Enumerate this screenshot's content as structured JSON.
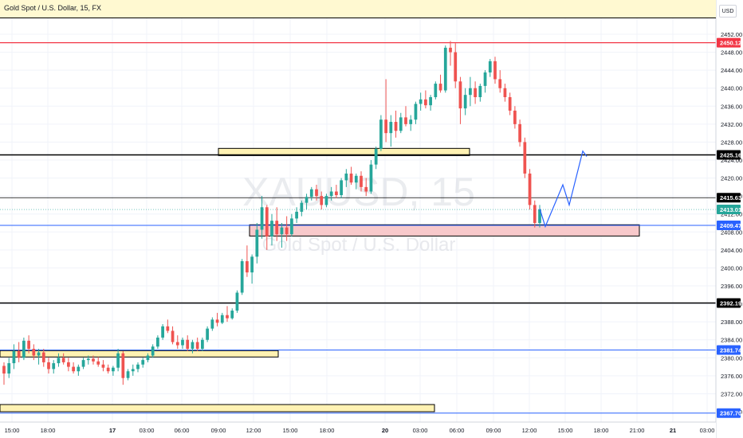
{
  "header": {
    "title": "Gold Spot / U.S. Dollar, 15, FX",
    "currency": "USD"
  },
  "watermark": {
    "symbol": "XAUUSD, 15",
    "name": "Gold Spot / U.S. Dollar"
  },
  "colors": {
    "up": "#26a69a",
    "down": "#ef5350",
    "zone_yellow": "#fff2b3",
    "zone_pink": "#f8c9cb",
    "red_line": "#f23645",
    "blue_line": "#2962ff",
    "projection": "#2962ff"
  },
  "chart_data": {
    "type": "candlestick",
    "title": "Gold Spot / U.S. Dollar, 15, FX",
    "ylim": [
      2366,
      2454
    ],
    "y_ticks": [
      2452,
      2448,
      2444,
      2440,
      2436,
      2432,
      2428,
      2424,
      2420,
      2416,
      2412,
      2408,
      2404,
      2400,
      2396,
      2392,
      2388,
      2384,
      2380,
      2376,
      2372,
      2368
    ],
    "x_ticks": [
      "15:00",
      "18:00",
      "17",
      "03:00",
      "06:00",
      "09:00",
      "12:00",
      "15:00",
      "18:00",
      "20",
      "03:00",
      "06:00",
      "09:00",
      "12:00",
      "15:00",
      "18:00",
      "21:00",
      "21",
      "03:00"
    ],
    "candles": [
      {
        "o": 2378.2,
        "h": 2379.0,
        "l": 2374.0,
        "c": 2376.5
      },
      {
        "o": 2376.5,
        "h": 2380.0,
        "l": 2375.5,
        "c": 2378.8
      },
      {
        "o": 2378.8,
        "h": 2383.0,
        "l": 2377.5,
        "c": 2381.5
      },
      {
        "o": 2381.5,
        "h": 2383.5,
        "l": 2379.0,
        "c": 2380.0
      },
      {
        "o": 2380.0,
        "h": 2384.5,
        "l": 2379.5,
        "c": 2383.8
      },
      {
        "o": 2383.8,
        "h": 2385.0,
        "l": 2381.0,
        "c": 2382.0
      },
      {
        "o": 2382.0,
        "h": 2383.0,
        "l": 2379.5,
        "c": 2380.5
      },
      {
        "o": 2380.5,
        "h": 2382.0,
        "l": 2378.5,
        "c": 2381.2
      },
      {
        "o": 2381.2,
        "h": 2382.0,
        "l": 2378.0,
        "c": 2379.0
      },
      {
        "o": 2379.0,
        "h": 2380.0,
        "l": 2376.5,
        "c": 2377.5
      },
      {
        "o": 2377.5,
        "h": 2379.5,
        "l": 2376.5,
        "c": 2378.8
      },
      {
        "o": 2378.8,
        "h": 2381.0,
        "l": 2378.0,
        "c": 2380.0
      },
      {
        "o": 2380.0,
        "h": 2381.0,
        "l": 2378.5,
        "c": 2379.0
      },
      {
        "o": 2379.0,
        "h": 2380.0,
        "l": 2377.0,
        "c": 2378.0
      },
      {
        "o": 2378.0,
        "h": 2379.0,
        "l": 2376.5,
        "c": 2377.0
      },
      {
        "o": 2377.0,
        "h": 2378.5,
        "l": 2376.0,
        "c": 2378.0
      },
      {
        "o": 2378.0,
        "h": 2380.0,
        "l": 2377.5,
        "c": 2379.5
      },
      {
        "o": 2379.5,
        "h": 2380.5,
        "l": 2378.5,
        "c": 2379.8
      },
      {
        "o": 2379.8,
        "h": 2380.5,
        "l": 2378.5,
        "c": 2379.2
      },
      {
        "o": 2379.2,
        "h": 2380.2,
        "l": 2378.0,
        "c": 2378.5
      },
      {
        "o": 2378.5,
        "h": 2379.5,
        "l": 2377.0,
        "c": 2377.8
      },
      {
        "o": 2377.8,
        "h": 2378.5,
        "l": 2376.5,
        "c": 2377.0
      },
      {
        "o": 2377.0,
        "h": 2378.2,
        "l": 2376.0,
        "c": 2377.8
      },
      {
        "o": 2377.8,
        "h": 2382.0,
        "l": 2377.0,
        "c": 2381.0
      },
      {
        "o": 2381.0,
        "h": 2381.5,
        "l": 2374.0,
        "c": 2375.5
      },
      {
        "o": 2375.5,
        "h": 2377.5,
        "l": 2375.0,
        "c": 2377.0
      },
      {
        "o": 2377.0,
        "h": 2378.5,
        "l": 2376.0,
        "c": 2377.5
      },
      {
        "o": 2377.5,
        "h": 2379.0,
        "l": 2376.8,
        "c": 2378.5
      },
      {
        "o": 2378.5,
        "h": 2380.0,
        "l": 2377.8,
        "c": 2379.5
      },
      {
        "o": 2379.5,
        "h": 2381.0,
        "l": 2379.0,
        "c": 2380.5
      },
      {
        "o": 2380.5,
        "h": 2383.0,
        "l": 2380.0,
        "c": 2382.5
      },
      {
        "o": 2382.5,
        "h": 2385.0,
        "l": 2382.0,
        "c": 2384.5
      },
      {
        "o": 2384.5,
        "h": 2387.5,
        "l": 2384.0,
        "c": 2387.0
      },
      {
        "o": 2387.0,
        "h": 2388.5,
        "l": 2385.5,
        "c": 2386.0
      },
      {
        "o": 2386.0,
        "h": 2387.0,
        "l": 2383.0,
        "c": 2383.5
      },
      {
        "o": 2383.5,
        "h": 2385.0,
        "l": 2382.0,
        "c": 2382.8
      },
      {
        "o": 2382.8,
        "h": 2384.5,
        "l": 2382.0,
        "c": 2384.0
      },
      {
        "o": 2384.0,
        "h": 2385.0,
        "l": 2381.5,
        "c": 2382.0
      },
      {
        "o": 2382.0,
        "h": 2384.0,
        "l": 2381.0,
        "c": 2383.5
      },
      {
        "o": 2383.5,
        "h": 2384.5,
        "l": 2381.5,
        "c": 2382.0
      },
      {
        "o": 2382.0,
        "h": 2384.5,
        "l": 2381.5,
        "c": 2384.0
      },
      {
        "o": 2384.0,
        "h": 2387.0,
        "l": 2383.5,
        "c": 2386.5
      },
      {
        "o": 2386.5,
        "h": 2389.0,
        "l": 2386.0,
        "c": 2388.5
      },
      {
        "o": 2388.5,
        "h": 2390.0,
        "l": 2387.0,
        "c": 2387.8
      },
      {
        "o": 2387.8,
        "h": 2390.0,
        "l": 2387.5,
        "c": 2389.5
      },
      {
        "o": 2389.5,
        "h": 2391.5,
        "l": 2388.0,
        "c": 2388.8
      },
      {
        "o": 2388.8,
        "h": 2391.0,
        "l": 2388.5,
        "c": 2390.5
      },
      {
        "o": 2390.5,
        "h": 2395.0,
        "l": 2390.0,
        "c": 2394.5
      },
      {
        "o": 2394.5,
        "h": 2402.0,
        "l": 2394.0,
        "c": 2401.5
      },
      {
        "o": 2401.5,
        "h": 2405.0,
        "l": 2398.0,
        "c": 2399.0
      },
      {
        "o": 2399.0,
        "h": 2403.0,
        "l": 2396.5,
        "c": 2402.5
      },
      {
        "o": 2402.5,
        "h": 2410.0,
        "l": 2401.0,
        "c": 2408.5
      },
      {
        "o": 2408.5,
        "h": 2416.0,
        "l": 2406.5,
        "c": 2413.5
      },
      {
        "o": 2413.5,
        "h": 2414.0,
        "l": 2404.0,
        "c": 2407.0
      },
      {
        "o": 2407.0,
        "h": 2412.0,
        "l": 2405.0,
        "c": 2410.5
      },
      {
        "o": 2410.5,
        "h": 2413.5,
        "l": 2406.0,
        "c": 2407.5
      },
      {
        "o": 2407.5,
        "h": 2410.0,
        "l": 2404.5,
        "c": 2409.0
      },
      {
        "o": 2409.0,
        "h": 2411.5,
        "l": 2406.0,
        "c": 2407.5
      },
      {
        "o": 2407.5,
        "h": 2412.0,
        "l": 2407.0,
        "c": 2411.0
      },
      {
        "o": 2411.0,
        "h": 2413.5,
        "l": 2410.0,
        "c": 2412.5
      },
      {
        "o": 2412.5,
        "h": 2415.0,
        "l": 2411.5,
        "c": 2414.5
      },
      {
        "o": 2414.5,
        "h": 2416.5,
        "l": 2413.0,
        "c": 2415.8
      },
      {
        "o": 2415.8,
        "h": 2418.0,
        "l": 2415.0,
        "c": 2417.5
      },
      {
        "o": 2417.5,
        "h": 2418.5,
        "l": 2415.0,
        "c": 2416.0
      },
      {
        "o": 2416.0,
        "h": 2417.0,
        "l": 2413.0,
        "c": 2414.0
      },
      {
        "o": 2414.0,
        "h": 2416.5,
        "l": 2413.5,
        "c": 2416.0
      },
      {
        "o": 2416.0,
        "h": 2418.0,
        "l": 2415.0,
        "c": 2417.0
      },
      {
        "o": 2417.0,
        "h": 2418.5,
        "l": 2415.5,
        "c": 2416.2
      },
      {
        "o": 2416.2,
        "h": 2420.0,
        "l": 2415.5,
        "c": 2419.5
      },
      {
        "o": 2419.5,
        "h": 2422.0,
        "l": 2418.0,
        "c": 2421.0
      },
      {
        "o": 2421.0,
        "h": 2422.5,
        "l": 2418.5,
        "c": 2419.0
      },
      {
        "o": 2419.0,
        "h": 2421.0,
        "l": 2417.5,
        "c": 2420.5
      },
      {
        "o": 2420.5,
        "h": 2421.5,
        "l": 2417.0,
        "c": 2418.0
      },
      {
        "o": 2418.0,
        "h": 2420.0,
        "l": 2416.0,
        "c": 2417.0
      },
      {
        "o": 2417.0,
        "h": 2424.0,
        "l": 2416.5,
        "c": 2423.0
      },
      {
        "o": 2423.0,
        "h": 2427.0,
        "l": 2422.0,
        "c": 2426.5
      },
      {
        "o": 2426.5,
        "h": 2434.0,
        "l": 2426.0,
        "c": 2433.0
      },
      {
        "o": 2433.0,
        "h": 2442.0,
        "l": 2428.0,
        "c": 2430.0
      },
      {
        "o": 2430.0,
        "h": 2434.0,
        "l": 2427.0,
        "c": 2432.5
      },
      {
        "o": 2432.5,
        "h": 2435.0,
        "l": 2429.0,
        "c": 2430.5
      },
      {
        "o": 2430.5,
        "h": 2434.5,
        "l": 2430.0,
        "c": 2433.5
      },
      {
        "o": 2433.5,
        "h": 2436.0,
        "l": 2431.5,
        "c": 2432.0
      },
      {
        "o": 2432.0,
        "h": 2434.0,
        "l": 2430.5,
        "c": 2433.0
      },
      {
        "o": 2433.0,
        "h": 2437.0,
        "l": 2432.0,
        "c": 2436.5
      },
      {
        "o": 2436.5,
        "h": 2439.0,
        "l": 2435.0,
        "c": 2437.5
      },
      {
        "o": 2437.5,
        "h": 2439.5,
        "l": 2435.5,
        "c": 2436.2
      },
      {
        "o": 2436.2,
        "h": 2438.5,
        "l": 2435.0,
        "c": 2438.0
      },
      {
        "o": 2438.0,
        "h": 2441.5,
        "l": 2437.5,
        "c": 2441.0
      },
      {
        "o": 2441.0,
        "h": 2443.0,
        "l": 2439.0,
        "c": 2439.5
      },
      {
        "o": 2439.5,
        "h": 2449.5,
        "l": 2439.0,
        "c": 2449.0
      },
      {
        "o": 2449.0,
        "h": 2450.5,
        "l": 2445.0,
        "c": 2448.0
      },
      {
        "o": 2448.0,
        "h": 2450.0,
        "l": 2440.0,
        "c": 2441.5
      },
      {
        "o": 2441.5,
        "h": 2442.5,
        "l": 2432.0,
        "c": 2435.5
      },
      {
        "o": 2435.5,
        "h": 2440.0,
        "l": 2434.0,
        "c": 2438.5
      },
      {
        "o": 2438.5,
        "h": 2442.5,
        "l": 2436.0,
        "c": 2440.0
      },
      {
        "o": 2440.0,
        "h": 2441.5,
        "l": 2436.5,
        "c": 2438.0
      },
      {
        "o": 2438.0,
        "h": 2441.0,
        "l": 2437.0,
        "c": 2440.5
      },
      {
        "o": 2440.5,
        "h": 2444.0,
        "l": 2439.0,
        "c": 2443.5
      },
      {
        "o": 2443.5,
        "h": 2446.5,
        "l": 2442.5,
        "c": 2446.0
      },
      {
        "o": 2446.0,
        "h": 2447.0,
        "l": 2441.0,
        "c": 2442.0
      },
      {
        "o": 2442.0,
        "h": 2444.0,
        "l": 2439.0,
        "c": 2440.0
      },
      {
        "o": 2440.0,
        "h": 2441.0,
        "l": 2437.0,
        "c": 2438.0
      },
      {
        "o": 2438.0,
        "h": 2439.0,
        "l": 2434.0,
        "c": 2435.0
      },
      {
        "o": 2435.0,
        "h": 2436.0,
        "l": 2431.0,
        "c": 2432.0
      },
      {
        "o": 2432.0,
        "h": 2433.0,
        "l": 2427.0,
        "c": 2428.0
      },
      {
        "o": 2428.0,
        "h": 2429.0,
        "l": 2420.0,
        "c": 2421.0
      },
      {
        "o": 2421.0,
        "h": 2422.0,
        "l": 2413.0,
        "c": 2414.0
      },
      {
        "o": 2414.0,
        "h": 2415.0,
        "l": 2409.0,
        "c": 2410.0
      },
      {
        "o": 2410.0,
        "h": 2414.0,
        "l": 2409.0,
        "c": 2413.01
      }
    ],
    "levels": [
      {
        "price": 2450.12,
        "label": "2450.12",
        "style": "red"
      },
      {
        "price": 2425.16,
        "label": "2425.16",
        "style": "black"
      },
      {
        "price": 2415.63,
        "label": "2415.63",
        "style": "black-thin"
      },
      {
        "price": 2413.01,
        "label": "2413.01",
        "style": "current"
      },
      {
        "price": 2409.47,
        "label": "2409.47",
        "style": "blue"
      },
      {
        "price": 2392.19,
        "label": "2392.19",
        "style": "black"
      },
      {
        "price": 2381.74,
        "label": "2381.74",
        "style": "blue"
      },
      {
        "price": 2367.7,
        "label": "2367.70",
        "style": "blue"
      }
    ],
    "zones": [
      {
        "y_top": 2426.6,
        "y_bottom": 2425.0,
        "color": "yellow"
      },
      {
        "y_top": 2409.6,
        "y_bottom": 2407.1,
        "color": "pink"
      },
      {
        "y_top": 2381.6,
        "y_bottom": 2381.0,
        "color": "yellow"
      },
      {
        "y_top": 2369.6,
        "y_bottom": 2368.0,
        "color": "yellow"
      }
    ],
    "projection_path": [
      {
        "price": 2413.2
      },
      {
        "price": 2409.2
      },
      {
        "price": 2418.5
      },
      {
        "price": 2414.0
      },
      {
        "price": 2426.0
      },
      {
        "price": 2424.8
      }
    ]
  }
}
